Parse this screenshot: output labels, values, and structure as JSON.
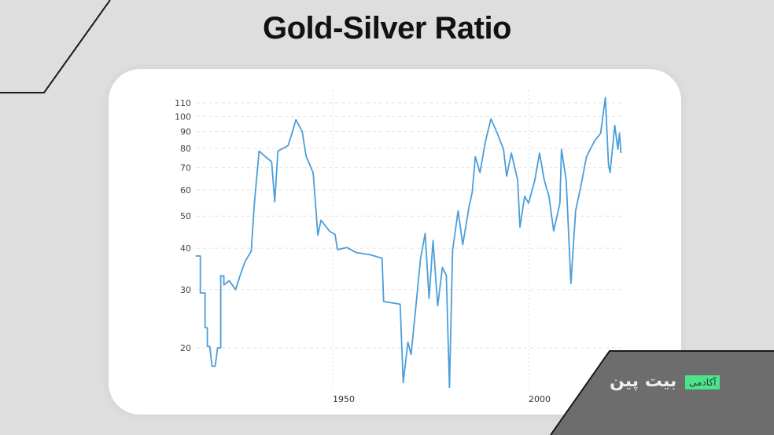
{
  "title": "Gold-Silver Ratio",
  "brand": {
    "name": "بیت پین",
    "badge": "آکادمی",
    "badge_color": "#4be38c",
    "panel_color": "#6d6d6d"
  },
  "chart_data": {
    "type": "line",
    "title": "Gold-Silver Ratio",
    "xlabel": "",
    "ylabel": "",
    "y_scale": "log",
    "ylim": [
      15,
      115
    ],
    "xlim": [
      1915,
      2023
    ],
    "grid": true,
    "legend": null,
    "line_color": "#4a9edb",
    "yticks": [
      20,
      30,
      40,
      50,
      60,
      70,
      80,
      90,
      100,
      110
    ],
    "xticks": [
      1950,
      2000
    ],
    "series": [
      {
        "name": "Gold-Silver Ratio",
        "points": [
          [
            1915.0,
            37.9
          ],
          [
            1916.2,
            37.9
          ],
          [
            1916.2,
            29.3
          ],
          [
            1917.4,
            29.3
          ],
          [
            1917.4,
            23.0
          ],
          [
            1918.0,
            23.0
          ],
          [
            1918.0,
            20.2
          ],
          [
            1918.6,
            20.2
          ],
          [
            1919.2,
            17.6
          ],
          [
            1920.0,
            17.6
          ],
          [
            1920.6,
            20.0
          ],
          [
            1921.4,
            20.0
          ],
          [
            1921.4,
            33.0
          ],
          [
            1922.2,
            33.0
          ],
          [
            1922.2,
            31.0
          ],
          [
            1923.6,
            31.9
          ],
          [
            1925.2,
            30.0
          ],
          [
            1926.4,
            33.2
          ],
          [
            1927.6,
            36.4
          ],
          [
            1929.2,
            39.2
          ],
          [
            1930.0,
            54.7
          ],
          [
            1931.2,
            78.6
          ],
          [
            1932.8,
            75.6
          ],
          [
            1934.4,
            73.0
          ],
          [
            1935.2,
            55.3
          ],
          [
            1936.0,
            78.6
          ],
          [
            1938.6,
            81.6
          ],
          [
            1939.6,
            89.0
          ],
          [
            1940.6,
            97.7
          ],
          [
            1942.2,
            90.0
          ],
          [
            1943.2,
            76.0
          ],
          [
            1945.0,
            67.6
          ],
          [
            1946.2,
            43.8
          ],
          [
            1947.0,
            48.6
          ],
          [
            1949.2,
            45.0
          ],
          [
            1950.6,
            44.0
          ],
          [
            1951.2,
            39.6
          ],
          [
            1953.6,
            40.2
          ],
          [
            1956.0,
            38.8
          ],
          [
            1959.6,
            38.2
          ],
          [
            1962.6,
            37.3
          ],
          [
            1963.0,
            27.6
          ],
          [
            1967.2,
            27.1
          ],
          [
            1968.0,
            15.7
          ],
          [
            1969.2,
            20.8
          ],
          [
            1970.0,
            19.1
          ],
          [
            1971.2,
            26.5
          ],
          [
            1972.4,
            37.2
          ],
          [
            1973.6,
            44.3
          ],
          [
            1974.6,
            28.2
          ],
          [
            1975.6,
            42.2
          ],
          [
            1976.8,
            26.8
          ],
          [
            1978.0,
            35.0
          ],
          [
            1979.0,
            33.1
          ],
          [
            1979.8,
            15.2
          ],
          [
            1980.6,
            39.4
          ],
          [
            1982.0,
            51.9
          ],
          [
            1983.2,
            41.0
          ],
          [
            1984.8,
            53.3
          ],
          [
            1985.6,
            59.0
          ],
          [
            1986.4,
            75.6
          ],
          [
            1987.6,
            67.7
          ],
          [
            1989.0,
            84.2
          ],
          [
            1990.4,
            98.4
          ],
          [
            1992.0,
            89.0
          ],
          [
            1993.6,
            79.6
          ],
          [
            1994.4,
            66.0
          ],
          [
            1995.6,
            77.5
          ],
          [
            1997.2,
            64.3
          ],
          [
            1997.8,
            46.3
          ],
          [
            1999.0,
            57.4
          ],
          [
            2000.0,
            54.7
          ],
          [
            2001.6,
            64.3
          ],
          [
            2002.8,
            77.5
          ],
          [
            2004.0,
            64.3
          ],
          [
            2005.2,
            57.4
          ],
          [
            2006.4,
            45.1
          ],
          [
            2008.0,
            54.7
          ],
          [
            2008.4,
            79.6
          ],
          [
            2009.6,
            64.3
          ],
          [
            2010.8,
            31.3
          ],
          [
            2012.0,
            51.9
          ],
          [
            2013.2,
            60.4
          ],
          [
            2014.8,
            75.6
          ],
          [
            2016.8,
            84.2
          ],
          [
            2018.4,
            89.0
          ],
          [
            2019.6,
            114.0
          ],
          [
            2020.4,
            71.5
          ],
          [
            2020.8,
            67.7
          ],
          [
            2022.0,
            94.0
          ],
          [
            2022.8,
            79.6
          ],
          [
            2023.2,
            89.0
          ],
          [
            2023.6,
            77.5
          ]
        ]
      }
    ]
  }
}
